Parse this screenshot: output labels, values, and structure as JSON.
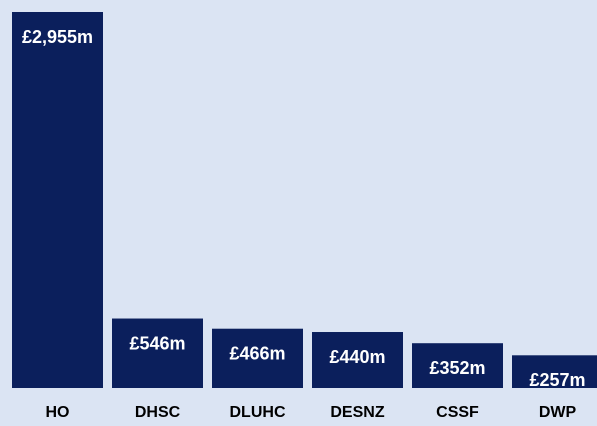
{
  "chart_data": {
    "type": "bar",
    "categories": [
      "HO",
      "DHSC",
      "DLUHC",
      "DESNZ",
      "CSSF",
      "DWP"
    ],
    "values": [
      2955,
      546,
      466,
      440,
      352,
      257
    ],
    "value_labels": [
      "£2,955m",
      "£546m",
      "£466m",
      "£440m",
      "£352m",
      "£257m"
    ],
    "color": "#0b1f5c"
  }
}
